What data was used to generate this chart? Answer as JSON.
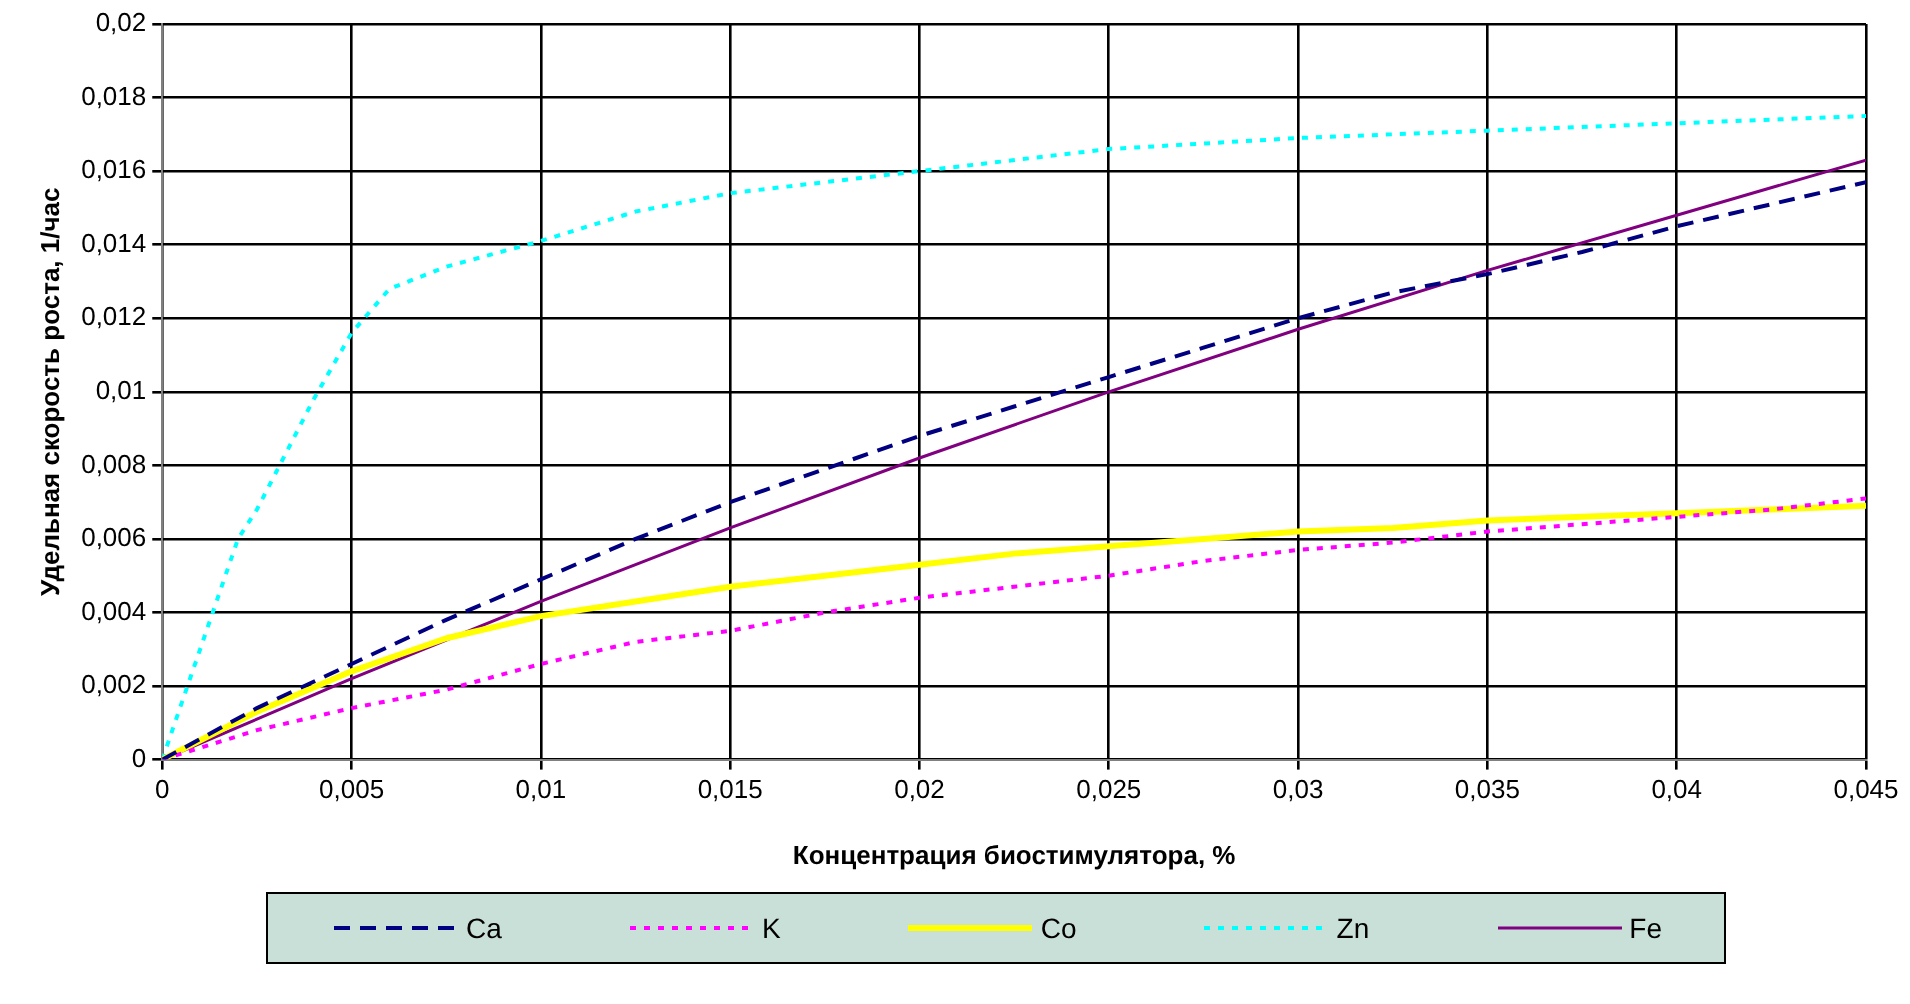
{
  "chart_data": {
    "type": "line",
    "xlabel": "Концентрация биостимулятора, %",
    "ylabel": "Удельная скорость роста, 1/час",
    "x": [
      0,
      0.0025,
      0.005,
      0.0075,
      0.01,
      0.0125,
      0.015,
      0.0175,
      0.02,
      0.0225,
      0.025,
      0.0275,
      0.03,
      0.0325,
      0.035,
      0.0375,
      0.04,
      0.0425,
      0.045
    ],
    "series": [
      {
        "name": "Ca",
        "color": "#000080",
        "line_style": "dashed",
        "values": [
          0,
          0.0014,
          0.0026,
          0.0038,
          0.0049,
          0.006,
          0.007,
          0.0079,
          0.0088,
          0.0096,
          0.0104,
          0.0112,
          0.012,
          0.0127,
          0.0132,
          0.0138,
          0.0145,
          0.0151,
          0.0157
        ]
      },
      {
        "name": "K",
        "color": "#ff00ff",
        "line_style": "dotted",
        "values": [
          0,
          0.0008,
          0.0014,
          0.0019,
          0.0026,
          0.0032,
          0.0035,
          0.004,
          0.0044,
          0.0047,
          0.005,
          0.0054,
          0.0057,
          0.0059,
          0.0062,
          0.0064,
          0.0066,
          0.0068,
          0.0071
        ]
      },
      {
        "name": "Co",
        "color": "#ffff00",
        "line_style": "solid",
        "values": [
          0,
          0.0013,
          0.0024,
          0.0033,
          0.0039,
          0.0043,
          0.0047,
          0.005,
          0.0053,
          0.0056,
          0.0058,
          0.006,
          0.0062,
          0.0063,
          0.0065,
          0.0066,
          0.0067,
          0.0068,
          0.0069
        ]
      },
      {
        "name": "Zn",
        "color": "#00ffff",
        "line_style": "dotted",
        "x": [
          0,
          0.001,
          0.002,
          0.0025,
          0.003,
          0.004,
          0.005,
          0.006,
          0.0075,
          0.01,
          0.0125,
          0.015,
          0.0175,
          0.02,
          0.025,
          0.03,
          0.035,
          0.04,
          0.045
        ],
        "values": [
          0,
          0.003,
          0.006,
          0.0068,
          0.0078,
          0.0098,
          0.0116,
          0.0128,
          0.0134,
          0.0141,
          0.0149,
          0.0154,
          0.0157,
          0.016,
          0.0166,
          0.0169,
          0.0171,
          0.0173,
          0.0175
        ]
      },
      {
        "name": "Fe",
        "color": "#800080",
        "line_style": "solid",
        "x": [
          0,
          0.005,
          0.01,
          0.015,
          0.02,
          0.025,
          0.03,
          0.035,
          0.04,
          0.045
        ],
        "values": [
          0,
          0.0022,
          0.0043,
          0.0063,
          0.0082,
          0.01,
          0.0117,
          0.0133,
          0.0148,
          0.0163
        ]
      }
    ],
    "xlim": [
      0,
      0.045
    ],
    "xticks": [
      0,
      {
        "value": 0.005,
        "label": "0,005"
      },
      {
        "value": 0.01,
        "label": "0,01"
      },
      {
        "value": 0.015,
        "label": "0,015"
      },
      {
        "value": 0.02,
        "label": "0,02"
      },
      {
        "value": 0.025,
        "label": "0,025"
      },
      {
        "value": 0.03,
        "label": "0,03"
      },
      {
        "value": 0.035,
        "label": "0,035"
      },
      {
        "value": 0.04,
        "label": "0,04"
      },
      {
        "value": 0.045,
        "label": "0,045"
      }
    ],
    "ylim": [
      0,
      0.02
    ],
    "yticks": [
      0,
      {
        "value": 0.002,
        "label": "0,002"
      },
      {
        "value": 0.004,
        "label": "0,004"
      },
      {
        "value": 0.006,
        "label": "0,006"
      },
      {
        "value": 0.008,
        "label": "0,008"
      },
      {
        "value": 0.01,
        "label": "0,01"
      },
      {
        "value": 0.012,
        "label": "0,012"
      },
      {
        "value": 0.014,
        "label": "0,014"
      },
      {
        "value": 0.016,
        "label": "0,016"
      },
      {
        "value": 0.018,
        "label": "0,018"
      },
      {
        "value": 0.02,
        "label": "0,02"
      }
    ],
    "grid": true,
    "legend": "bottom",
    "marker": "none"
  }
}
